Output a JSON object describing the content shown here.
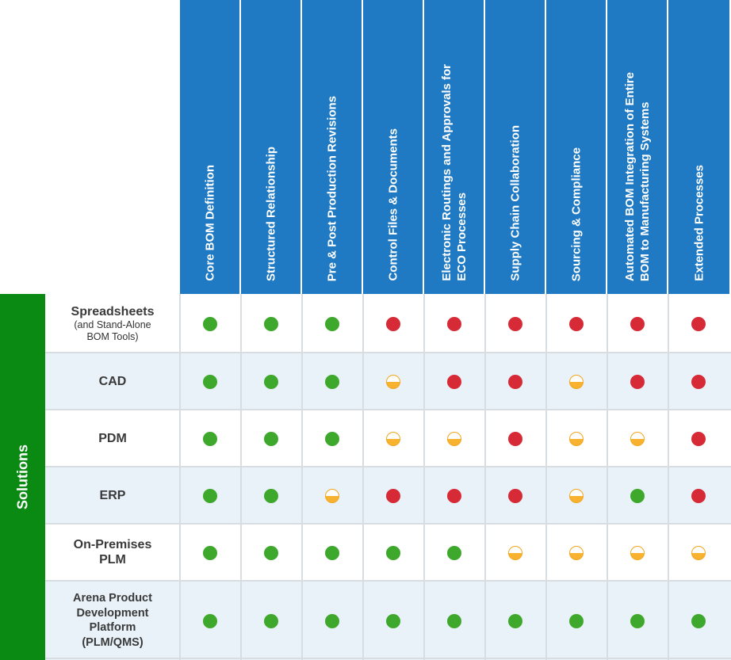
{
  "columns": [
    {
      "label": "Core BOM Definition"
    },
    {
      "label": "Structured Relationship"
    },
    {
      "label": "Pre & Post Production Revisions"
    },
    {
      "label": "Control Files & Documents"
    },
    {
      "label": "Electronic Routings and Approvals for\nECO  Processes"
    },
    {
      "label": "Supply Chain Collaboration"
    },
    {
      "label": "Sourcing & Compliance"
    },
    {
      "label": "Automated BOM Integration of Entire\nBOM to Manufacturing Systems"
    },
    {
      "label": "Extended Processes"
    }
  ],
  "side_label": "Solutions",
  "rows": [
    {
      "label": "Spreadsheets",
      "sublabel": "(and Stand-Alone\nBOM Tools)",
      "ratings": [
        "full-green",
        "full-green",
        "full-green",
        "full-red",
        "full-red",
        "full-red",
        "full-red",
        "full-red",
        "full-red"
      ]
    },
    {
      "label": "CAD",
      "sublabel": "",
      "ratings": [
        "full-green",
        "full-green",
        "full-green",
        "half",
        "full-red",
        "full-red",
        "half",
        "full-red",
        "full-red"
      ]
    },
    {
      "label": "PDM",
      "sublabel": "",
      "ratings": [
        "full-green",
        "full-green",
        "full-green",
        "half",
        "half",
        "full-red",
        "half",
        "half",
        "full-red"
      ]
    },
    {
      "label": "ERP",
      "sublabel": "",
      "ratings": [
        "full-green",
        "full-green",
        "half",
        "full-red",
        "full-red",
        "full-red",
        "half",
        "full-green",
        "full-red"
      ]
    },
    {
      "label": "On-Premises\nPLM",
      "sublabel": "",
      "ratings": [
        "full-green",
        "full-green",
        "full-green",
        "full-green",
        "full-green",
        "half",
        "half",
        "half",
        "half"
      ]
    },
    {
      "label": "Arena Product\nDevelopment\nPlatform\n(PLM/QMS)",
      "sublabel": "",
      "ratings": [
        "full-green",
        "full-green",
        "full-green",
        "full-green",
        "full-green",
        "full-green",
        "full-green",
        "full-green",
        "full-green"
      ]
    }
  ],
  "colors": {
    "header_blue": "#1f7ac3",
    "side_green": "#0a8a12",
    "row_alt": "#e9f2f9",
    "dot_green": "#3da82b",
    "dot_red": "#d62a36",
    "dot_half": "#f7b230"
  }
}
